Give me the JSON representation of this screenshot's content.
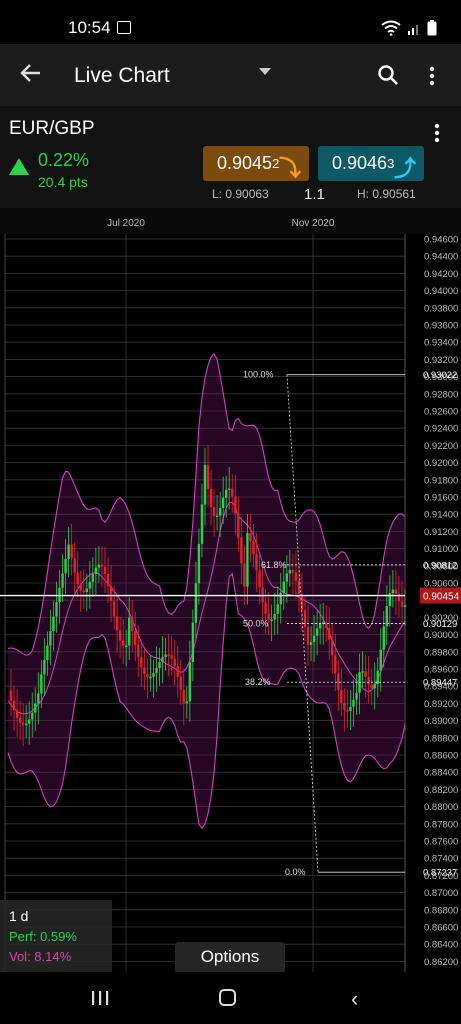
{
  "status_bar": {
    "time": "10:54"
  },
  "app_bar": {
    "title": "Live Chart"
  },
  "instrument": {
    "symbol": "EUR/GBP",
    "change_pct": "0.22%",
    "change_pts": "20.4 pts",
    "sell": {
      "main": "0.9045",
      "pip": "2"
    },
    "buy": {
      "main": "0.9046",
      "pip": "3"
    },
    "low": "L: 0.90063",
    "spread": "1.1",
    "high": "H: 0.90561"
  },
  "chart_data": {
    "type": "candlestick",
    "x_labels": [
      "Jul 2020",
      "Nov 2020"
    ],
    "y_ticks": [
      "0.94600",
      "0.94400",
      "0.94200",
      "0.94000",
      "0.93800",
      "0.93600",
      "0.93400",
      "0.93200",
      "0.93000",
      "0.92800",
      "0.92600",
      "0.92400",
      "0.92200",
      "0.92000",
      "0.91800",
      "0.91600",
      "0.91400",
      "0.91200",
      "0.91000",
      "0.90800",
      "0.90600",
      "0.90400",
      "0.90200",
      "0.90000",
      "0.89800",
      "0.89600",
      "0.89400",
      "0.89200",
      "0.89000",
      "0.88800",
      "0.88600",
      "0.88400",
      "0.88200",
      "0.88000",
      "0.87800",
      "0.87600",
      "0.87400",
      "0.87200",
      "0.87000",
      "0.86800",
      "0.86600",
      "0.86400",
      "0.86200"
    ],
    "ylim": [
      0.862,
      0.946
    ],
    "current_price": "0.90454",
    "fibonacci": [
      {
        "label": "100.0%",
        "value": "0.93022"
      },
      {
        "label": "61.8%",
        "value": "0.90812"
      },
      {
        "label": "50.0%",
        "value": "0.90129"
      },
      {
        "label": "38.2%",
        "value": "0.89447"
      },
      {
        "label": "0.0%",
        "value": "0.87237"
      }
    ],
    "indicators": [
      "Bollinger Bands"
    ]
  },
  "info": {
    "timeframe": "1 d",
    "perf": "Perf: 0.59%",
    "vol": "Vol: 8.14%"
  },
  "options_label": "Options",
  "colors": {
    "up": "#27d44a",
    "down": "#e0262a",
    "band": "#d040c0",
    "sell": "#7a4b0c",
    "buy": "#0d5a66",
    "price_tag": "#b01818"
  }
}
